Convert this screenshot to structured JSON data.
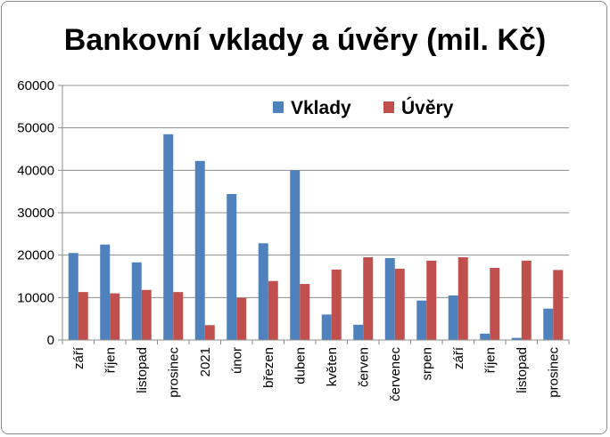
{
  "chart_data": {
    "type": "bar",
    "title": "Bankovní vklady a úvěry (mil. Kč)",
    "xlabel": "",
    "ylabel": "",
    "ylim": [
      0,
      60000
    ],
    "yticks": [
      0,
      10000,
      20000,
      30000,
      40000,
      50000,
      60000
    ],
    "grid": true,
    "legend_position": "top-right",
    "categories": [
      "září",
      "říjen",
      "listopad",
      "prosinec",
      "2021",
      "únor",
      "březen",
      "duben",
      "květen",
      "červen",
      "červenec",
      "srpen",
      "září",
      "říjen",
      "listopad",
      "prosinec"
    ],
    "series": [
      {
        "name": "Vklady",
        "color": "#4f81bd",
        "values": [
          20500,
          22500,
          18300,
          48500,
          42200,
          34400,
          22800,
          40000,
          6000,
          3600,
          19300,
          9300,
          10500,
          1500,
          500,
          7400
        ]
      },
      {
        "name": "Úvěry",
        "color": "#c0504d",
        "values": [
          11300,
          11000,
          11800,
          11300,
          3500,
          9900,
          13900,
          13200,
          16600,
          19500,
          16800,
          18700,
          19500,
          17000,
          18700,
          16500
        ]
      }
    ]
  }
}
